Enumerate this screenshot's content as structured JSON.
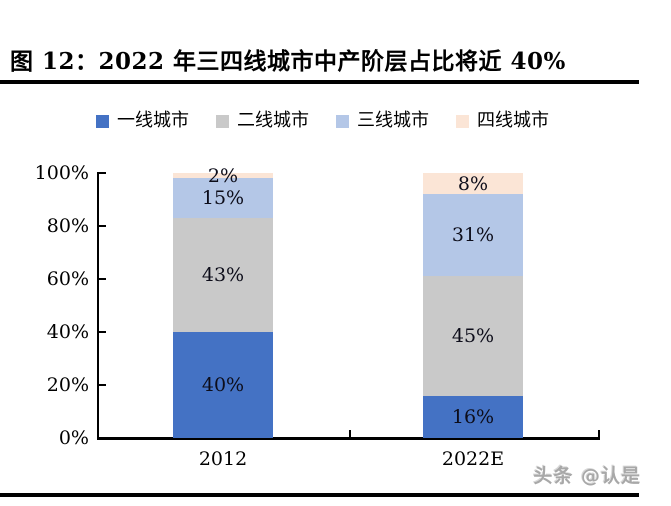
{
  "title": "图 12：2022 年三四线城市中产阶层占比将近 40%",
  "watermark": "头条 @认是",
  "chart_data": {
    "type": "bar",
    "stacked": true,
    "title": "2022 年三四线城市中产阶层占比将近 40%",
    "categories": [
      "2012",
      "2022E"
    ],
    "series": [
      {
        "name": "一线城市",
        "color": "#4472C4",
        "values": [
          40,
          16
        ]
      },
      {
        "name": "二线城市",
        "color": "#C9C9C9",
        "values": [
          43,
          45
        ]
      },
      {
        "name": "三线城市",
        "color": "#B4C7E7",
        "values": [
          15,
          31
        ]
      },
      {
        "name": "四线城市",
        "color": "#FBE5D6",
        "values": [
          2,
          8
        ]
      }
    ],
    "xlabel": "",
    "ylabel": "",
    "ylim": [
      0,
      100
    ],
    "yticks": [
      0,
      20,
      40,
      60,
      80,
      100
    ],
    "ytick_suffix": "%",
    "data_label_suffix": "%",
    "grid": false,
    "legend_position": "top"
  }
}
